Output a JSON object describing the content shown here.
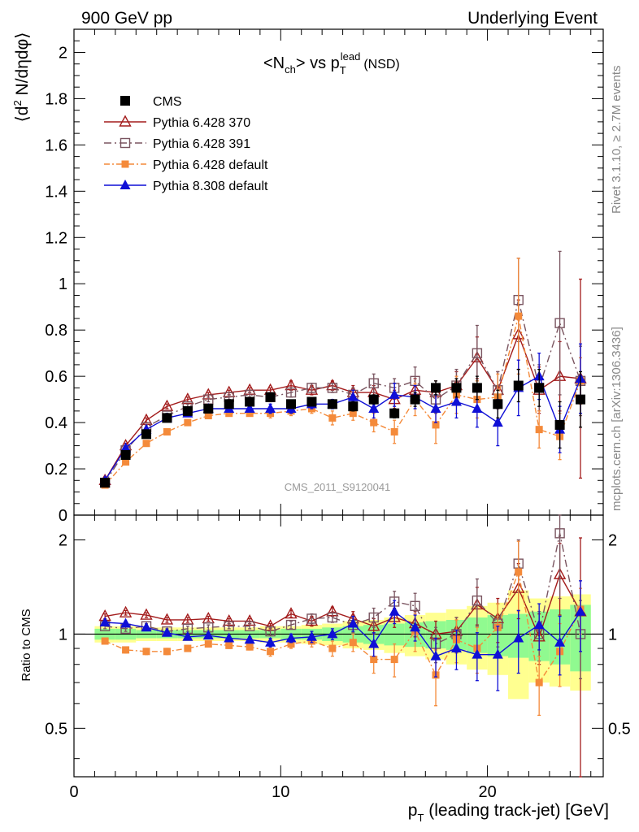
{
  "header": {
    "left_label": "900 GeV pp",
    "right_label": "Underlying Event"
  },
  "side_labels": {
    "rivet": "Rivet 3.1.10, ≥ 2.7M events",
    "mcplots": "mcplots.cern.ch [arXiv:1306.3436]"
  },
  "watermark": "CMS_2011_S9120041",
  "colors": {
    "cms": "#000000",
    "p370": "#a31c1c",
    "p391": "#7a5560",
    "pdef": "#f48a3a",
    "p8": "#0f0fd6",
    "band_green": "#90fa90",
    "band_yellow": "#ffff90"
  },
  "chart_data": [
    {
      "type": "line",
      "title": "<N_ch> vs p_T^lead (NSD)",
      "title_parts": {
        "main": "<N",
        "main_sub": "ch",
        "mid": "> vs p",
        "mid_sub": "T",
        "mid_sup": "lead",
        "tail": "(NSD)"
      },
      "ylabel": "⟨d² N/dηdφ⟩",
      "ylabel_parts": {
        "a": "⟨d",
        "sup": "2",
        "b": " N/dηdφ⟩"
      },
      "xlim": [
        0,
        25.6
      ],
      "ylim": [
        0,
        2.1
      ],
      "yticks": [
        0,
        0.2,
        0.4,
        0.6,
        0.8,
        1,
        1.2,
        1.4,
        1.6,
        1.8,
        2
      ],
      "ytick_labels": [
        "0",
        "0.2",
        "0.4",
        "0.6",
        "0.8",
        "1",
        "1.2",
        "1.4",
        "1.6",
        "1.8",
        "2"
      ],
      "x": [
        1.5,
        2.5,
        3.5,
        4.5,
        5.5,
        6.5,
        7.5,
        8.5,
        9.5,
        10.5,
        11.5,
        12.5,
        13.5,
        14.5,
        15.5,
        16.5,
        17.5,
        18.5,
        19.5,
        20.5,
        21.5,
        22.5,
        23.5,
        24.5
      ],
      "legend": [
        "CMS",
        "Pythia 6.428 370",
        "Pythia 6.428 391",
        "Pythia 6.428 default",
        "Pythia 8.308 default"
      ],
      "series": [
        {
          "name": "CMS",
          "values": [
            0.14,
            0.26,
            0.35,
            0.42,
            0.45,
            0.46,
            0.48,
            0.49,
            0.51,
            0.48,
            0.49,
            0.48,
            0.47,
            0.5,
            0.44,
            0.5,
            0.55,
            0.55,
            0.55,
            0.48,
            0.56,
            0.55,
            0.39,
            0.5
          ],
          "err": [
            0.01,
            0.01,
            0.01,
            0.01,
            0.01,
            0.01,
            0.01,
            0.01,
            0.01,
            0.01,
            0.01,
            0.01,
            0.02,
            0.02,
            0.02,
            0.03,
            0.03,
            0.04,
            0.05,
            0.06,
            0.07,
            0.08,
            0.1,
            0.12
          ]
        },
        {
          "name": "Pythia 6.428 370",
          "values": [
            0.15,
            0.3,
            0.41,
            0.47,
            0.5,
            0.52,
            0.53,
            0.54,
            0.54,
            0.56,
            0.54,
            0.56,
            0.53,
            0.53,
            0.5,
            0.54,
            0.53,
            0.56,
            0.68,
            0.54,
            0.78,
            0.54,
            0.6,
            0.59
          ],
          "err": [
            0.01,
            0.01,
            0.01,
            0.01,
            0.01,
            0.01,
            0.01,
            0.01,
            0.01,
            0.02,
            0.02,
            0.02,
            0.03,
            0.03,
            0.04,
            0.05,
            0.05,
            0.06,
            0.09,
            0.08,
            0.15,
            0.1,
            0.15,
            0.43
          ]
        },
        {
          "name": "Pythia 6.428 391",
          "values": [
            0.14,
            0.28,
            0.38,
            0.43,
            0.47,
            0.5,
            0.51,
            0.52,
            0.51,
            0.53,
            0.55,
            0.55,
            0.52,
            0.57,
            0.55,
            0.58,
            0.5,
            0.56,
            0.7,
            0.54,
            0.93,
            0.55,
            0.83,
            0.58
          ],
          "err": [
            0.01,
            0.01,
            0.01,
            0.01,
            0.01,
            0.01,
            0.01,
            0.01,
            0.02,
            0.02,
            0.02,
            0.02,
            0.03,
            0.04,
            0.04,
            0.06,
            0.06,
            0.07,
            0.12,
            0.08,
            0.18,
            0.1,
            0.31,
            0.15
          ]
        },
        {
          "name": "Pythia 6.428 default",
          "values": [
            0.13,
            0.23,
            0.31,
            0.36,
            0.4,
            0.43,
            0.44,
            0.44,
            0.44,
            0.45,
            0.46,
            0.42,
            0.44,
            0.4,
            0.36,
            0.5,
            0.39,
            0.52,
            0.5,
            0.51,
            0.86,
            0.37,
            0.34,
            0.58
          ],
          "err": [
            0.01,
            0.01,
            0.01,
            0.01,
            0.01,
            0.01,
            0.01,
            0.01,
            0.02,
            0.02,
            0.02,
            0.03,
            0.03,
            0.04,
            0.05,
            0.07,
            0.08,
            0.08,
            0.08,
            0.1,
            0.25,
            0.08,
            0.1,
            0.1
          ]
        },
        {
          "name": "Pythia 8.308 default",
          "values": [
            0.15,
            0.29,
            0.37,
            0.42,
            0.44,
            0.46,
            0.46,
            0.46,
            0.46,
            0.46,
            0.48,
            0.48,
            0.51,
            0.46,
            0.52,
            0.51,
            0.46,
            0.49,
            0.46,
            0.4,
            0.55,
            0.6,
            0.37,
            0.59
          ],
          "err": [
            0.01,
            0.01,
            0.01,
            0.01,
            0.01,
            0.01,
            0.01,
            0.01,
            0.02,
            0.02,
            0.02,
            0.02,
            0.03,
            0.04,
            0.05,
            0.05,
            0.06,
            0.07,
            0.08,
            0.1,
            0.12,
            0.1,
            0.1,
            0.15
          ]
        }
      ]
    },
    {
      "type": "line",
      "title": "",
      "ylabel": "Ratio to CMS",
      "xlabel": "p_T (leading track-jet) [GeV]",
      "xlabel_parts": {
        "a": "p",
        "sub": "T",
        "b": " (leading track-jet) [GeV]"
      },
      "log_y": true,
      "xlim": [
        0,
        25.6
      ],
      "ylim": [
        0.35,
        2.4
      ],
      "xticks": [
        0,
        10,
        20
      ],
      "xtick_labels": [
        "0",
        "10",
        "20"
      ],
      "yticks": [
        0.5,
        1,
        2
      ],
      "ytick_labels": [
        "0.5",
        "1",
        "2"
      ],
      "x": [
        1.5,
        2.5,
        3.5,
        4.5,
        5.5,
        6.5,
        7.5,
        8.5,
        9.5,
        10.5,
        11.5,
        12.5,
        13.5,
        14.5,
        15.5,
        16.5,
        17.5,
        18.5,
        19.5,
        20.5,
        21.5,
        22.5,
        23.5,
        24.5
      ],
      "band_green": [
        0.04,
        0.04,
        0.03,
        0.03,
        0.03,
        0.03,
        0.03,
        0.03,
        0.03,
        0.04,
        0.04,
        0.05,
        0.06,
        0.07,
        0.08,
        0.09,
        0.1,
        0.11,
        0.13,
        0.15,
        0.16,
        0.18,
        0.2,
        0.24
      ],
      "band_yellow": [
        0.06,
        0.06,
        0.05,
        0.05,
        0.05,
        0.05,
        0.05,
        0.05,
        0.06,
        0.06,
        0.07,
        0.08,
        0.1,
        0.11,
        0.13,
        0.15,
        0.17,
        0.2,
        0.23,
        0.26,
        0.38,
        0.3,
        0.32,
        0.34
      ],
      "series": [
        {
          "name": "Pythia 6.428 370",
          "values": [
            1.14,
            1.17,
            1.15,
            1.11,
            1.11,
            1.12,
            1.1,
            1.1,
            1.06,
            1.16,
            1.1,
            1.18,
            1.12,
            1.06,
            1.13,
            1.08,
            1.0,
            1.02,
            1.24,
            1.12,
            1.4,
            0.98,
            1.55,
            1.18
          ],
          "err": [
            0.02,
            0.02,
            0.02,
            0.02,
            0.02,
            0.02,
            0.02,
            0.02,
            0.02,
            0.03,
            0.04,
            0.04,
            0.06,
            0.06,
            0.08,
            0.1,
            0.1,
            0.11,
            0.17,
            0.18,
            0.28,
            0.18,
            0.4,
            0.85
          ]
        },
        {
          "name": "Pythia 6.428 391",
          "values": [
            1.06,
            1.04,
            1.06,
            1.02,
            1.04,
            1.05,
            1.06,
            1.06,
            1.02,
            1.07,
            1.12,
            1.13,
            1.07,
            1.13,
            1.27,
            1.23,
            0.93,
            1.0,
            1.28,
            1.08,
            1.68,
            1.0,
            2.1,
            1.0
          ],
          "err": [
            0.02,
            0.02,
            0.02,
            0.02,
            0.02,
            0.02,
            0.02,
            0.02,
            0.03,
            0.03,
            0.04,
            0.04,
            0.06,
            0.08,
            0.1,
            0.12,
            0.12,
            0.13,
            0.22,
            0.17,
            0.32,
            0.18,
            0.8,
            0.28
          ]
        },
        {
          "name": "Pythia 6.428 default",
          "values": [
            0.95,
            0.89,
            0.88,
            0.88,
            0.9,
            0.93,
            0.92,
            0.91,
            0.88,
            0.93,
            0.95,
            0.9,
            0.94,
            0.83,
            0.83,
            1.02,
            0.74,
            0.96,
            0.9,
            1.05,
            1.58,
            0.7,
            0.88,
            1.2
          ],
          "err": [
            0.02,
            0.02,
            0.02,
            0.02,
            0.02,
            0.02,
            0.02,
            0.02,
            0.03,
            0.03,
            0.04,
            0.05,
            0.06,
            0.08,
            0.1,
            0.14,
            0.15,
            0.15,
            0.15,
            0.2,
            0.4,
            0.15,
            0.2,
            0.2
          ]
        },
        {
          "name": "Pythia 8.308 default",
          "values": [
            1.09,
            1.08,
            1.05,
            1.01,
            0.98,
            0.99,
            0.97,
            0.96,
            0.94,
            0.97,
            0.98,
            1.0,
            1.08,
            0.93,
            1.18,
            1.05,
            0.85,
            0.9,
            0.86,
            0.86,
            0.97,
            1.07,
            0.94,
            1.18
          ],
          "err": [
            0.02,
            0.02,
            0.02,
            0.02,
            0.02,
            0.02,
            0.02,
            0.02,
            0.03,
            0.03,
            0.04,
            0.04,
            0.06,
            0.08,
            0.1,
            0.1,
            0.12,
            0.13,
            0.15,
            0.2,
            0.22,
            0.18,
            0.2,
            0.3
          ]
        }
      ]
    }
  ]
}
